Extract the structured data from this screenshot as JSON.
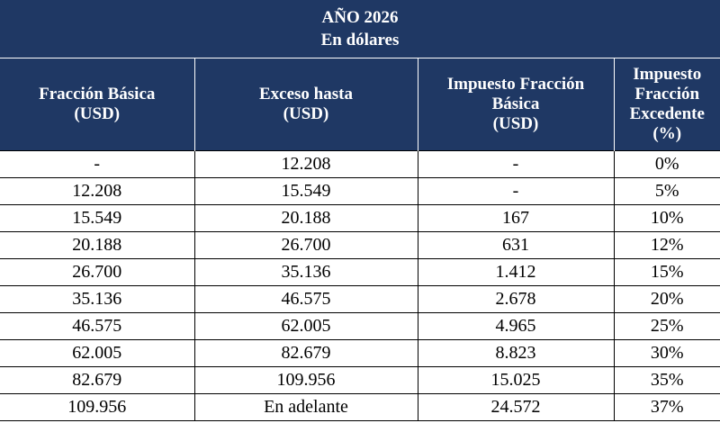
{
  "title": {
    "line1": "AÑO 2026",
    "line2": "En dólares"
  },
  "header": {
    "col1": [
      "Fracción Básica",
      "(USD)"
    ],
    "col2": [
      "Exceso hasta",
      "(USD)"
    ],
    "col3": [
      "Impuesto Fracción",
      "Básica",
      "(USD)"
    ],
    "col4": [
      "Impuesto",
      "Fracción",
      "Excedente",
      "(%)"
    ]
  },
  "rows": [
    [
      "-",
      "12.208",
      "-",
      "0%"
    ],
    [
      "12.208",
      "15.549",
      "-",
      "5%"
    ],
    [
      "15.549",
      "20.188",
      "167",
      "10%"
    ],
    [
      "20.188",
      "26.700",
      "631",
      "12%"
    ],
    [
      "26.700",
      "35.136",
      "1.412",
      "15%"
    ],
    [
      "35.136",
      "46.575",
      "2.678",
      "20%"
    ],
    [
      "46.575",
      "62.005",
      "4.965",
      "25%"
    ],
    [
      "62.005",
      "82.679",
      "8.823",
      "30%"
    ],
    [
      "82.679",
      "109.956",
      "15.025",
      "35%"
    ],
    [
      "109.956",
      "En adelante",
      "24.572",
      "37%"
    ]
  ],
  "colors": {
    "header_bg": "#1f3864",
    "header_text": "#ffffff",
    "grid": "#000000"
  }
}
